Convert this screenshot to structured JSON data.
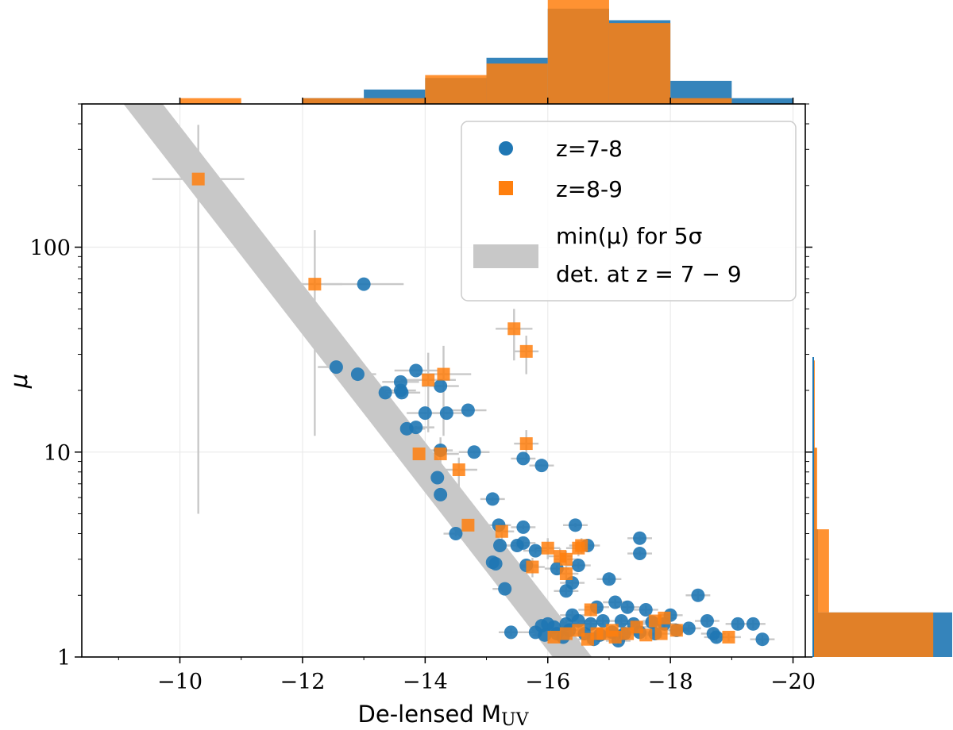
{
  "chart_data": {
    "type": "scatter",
    "title": "",
    "xlabel": "De-lensed M",
    "xlabel_sub": "UV",
    "ylabel": "μ",
    "xlim": [
      -8.4,
      -20.2
    ],
    "ylim": [
      1,
      500
    ],
    "yscale": "log",
    "x_ticks": [
      -10,
      -12,
      -14,
      -16,
      -18,
      -20
    ],
    "x_tick_labels": [
      "−10",
      "−12",
      "−14",
      "−16",
      "−18",
      "−20"
    ],
    "y_ticks": [
      1,
      10,
      100
    ],
    "y_tick_labels": [
      "1",
      "10",
      "100"
    ],
    "grid": true,
    "legend": {
      "placement": "top-right",
      "entries": [
        {
          "label": "z=7-8",
          "marker": "circle"
        },
        {
          "label": "z=8-9",
          "marker": "square"
        },
        {
          "label_line1": "min(μ) for 5σ",
          "label_line2": "det. at z = 7 − 9",
          "marker": "band"
        }
      ]
    },
    "colors": {
      "blue": "#1f77b4",
      "orange": "#ff7f0e",
      "band": "#c8c8c8",
      "errorbar": "#c8c8c8"
    },
    "band": {
      "x": [
        -9.4,
        -16.4
      ],
      "y_lo": [
        500,
        1
      ],
      "y_hi": [
        500,
        1
      ],
      "half_width_x": 0.32
    },
    "series": [
      {
        "name": "z=7-8",
        "points": [
          [
            -13.0,
            66,
            0.65,
            0.28,
            0.5
          ],
          [
            -12.55,
            26,
            0.3,
            0.2,
            0.2
          ],
          [
            -12.9,
            24,
            0.3,
            0.2,
            0.2
          ],
          [
            -13.85,
            25,
            0.35,
            0.2,
            0.2
          ],
          [
            -13.6,
            22,
            0.3,
            0.2,
            0.2
          ],
          [
            -13.62,
            19.5,
            0.3,
            0.2,
            0.2
          ],
          [
            -13.35,
            19.5,
            0.3,
            0.2,
            0.2
          ],
          [
            -13.6,
            20,
            0.25,
            0.2,
            0.2
          ],
          [
            -14.25,
            21,
            0.3,
            0.2,
            0.2
          ],
          [
            -14.0,
            15.5,
            0.3,
            0.2,
            0.2
          ],
          [
            -14.35,
            15.5,
            0.3,
            0.2,
            0.2
          ],
          [
            -14.7,
            16,
            0.3,
            0.2,
            0.2
          ],
          [
            -13.7,
            13,
            0.3,
            0.2,
            0.2
          ],
          [
            -13.85,
            13.2,
            0.3,
            0.2,
            0.2
          ],
          [
            -14.25,
            10.2,
            0.2,
            0.15,
            0.15
          ],
          [
            -14.8,
            10,
            0.25,
            0.15,
            0.15
          ],
          [
            -14.2,
            7.5,
            0.2,
            0.15,
            0.15
          ],
          [
            -14.25,
            6.2,
            0.2,
            0.15,
            0.15
          ],
          [
            -14.5,
            4.0,
            0.2,
            0.12,
            0.12
          ],
          [
            -15.1,
            5.9,
            0.2,
            0.12,
            0.12
          ],
          [
            -15.2,
            4.4,
            0.2,
            0.12,
            0.12
          ],
          [
            -15.22,
            3.5,
            0.2,
            0.12,
            0.12
          ],
          [
            -15.1,
            2.9,
            0.2,
            0.1,
            0.1
          ],
          [
            -15.15,
            2.85,
            0.2,
            0.1,
            0.1
          ],
          [
            -15.3,
            2.15,
            0.2,
            0.1,
            0.1
          ],
          [
            -15.5,
            3.5,
            0.2,
            0.1,
            0.1
          ],
          [
            -15.6,
            4.3,
            0.2,
            0.1,
            0.1
          ],
          [
            -15.6,
            9.3,
            0.2,
            0.12,
            0.12
          ],
          [
            -15.9,
            8.6,
            0.2,
            0.12,
            0.12
          ],
          [
            -15.6,
            3.6,
            0.2,
            0.1,
            0.1
          ],
          [
            -15.65,
            2.8,
            0.2,
            0.1,
            0.1
          ],
          [
            -15.8,
            3.3,
            0.2,
            0.1,
            0.1
          ],
          [
            -16.15,
            2.7,
            0.2,
            0.1,
            0.1
          ],
          [
            -16.45,
            4.4,
            0.2,
            0.1,
            0.1
          ],
          [
            -16.65,
            3.5,
            0.2,
            0.1,
            0.1
          ],
          [
            -16.5,
            2.8,
            0.2,
            0.1,
            0.1
          ],
          [
            -16.4,
            2.3,
            0.2,
            0.1,
            0.1
          ],
          [
            -16.3,
            2.1,
            0.2,
            0.1,
            0.1
          ],
          [
            -17.0,
            2.4,
            0.2,
            0.1,
            0.1
          ],
          [
            -17.5,
            3.8,
            0.2,
            0.1,
            0.1
          ],
          [
            -17.5,
            3.2,
            0.2,
            0.1,
            0.1
          ],
          [
            -18.45,
            2.0,
            0.2,
            0.1,
            0.1
          ],
          [
            -17.1,
            1.85,
            0.2,
            0.08,
            0.08
          ],
          [
            -17.3,
            1.75,
            0.2,
            0.08,
            0.08
          ],
          [
            -16.8,
            1.75,
            0.2,
            0.08,
            0.08
          ],
          [
            -17.6,
            1.7,
            0.2,
            0.08,
            0.08
          ],
          [
            -18.0,
            1.6,
            0.2,
            0.08,
            0.08
          ],
          [
            -16.4,
            1.6,
            0.2,
            0.08,
            0.08
          ],
          [
            -15.9,
            1.42,
            0.2,
            0.07,
            0.07
          ],
          [
            -16.0,
            1.45,
            0.2,
            0.07,
            0.07
          ],
          [
            -16.1,
            1.4,
            0.2,
            0.07,
            0.07
          ],
          [
            -16.3,
            1.45,
            0.2,
            0.07,
            0.07
          ],
          [
            -16.5,
            1.5,
            0.2,
            0.07,
            0.07
          ],
          [
            -16.7,
            1.45,
            0.2,
            0.07,
            0.07
          ],
          [
            -16.9,
            1.5,
            0.2,
            0.07,
            0.07
          ],
          [
            -17.2,
            1.5,
            0.2,
            0.07,
            0.07
          ],
          [
            -17.4,
            1.45,
            0.2,
            0.07,
            0.07
          ],
          [
            -17.7,
            1.48,
            0.2,
            0.07,
            0.07
          ],
          [
            -17.9,
            1.45,
            0.2,
            0.07,
            0.07
          ],
          [
            -18.6,
            1.5,
            0.2,
            0.07,
            0.07
          ],
          [
            -18.7,
            1.3,
            0.2,
            0.07,
            0.07
          ],
          [
            -18.75,
            1.25,
            0.2,
            0.07,
            0.07
          ],
          [
            -19.1,
            1.45,
            0.2,
            0.07,
            0.07
          ],
          [
            -19.35,
            1.45,
            0.2,
            0.07,
            0.07
          ],
          [
            -19.5,
            1.22,
            0.2,
            0.06,
            0.06
          ],
          [
            -15.4,
            1.32,
            0.2,
            0.06,
            0.06
          ],
          [
            -15.8,
            1.32,
            0.2,
            0.06,
            0.06
          ],
          [
            -15.95,
            1.28,
            0.2,
            0.06,
            0.06
          ],
          [
            -16.15,
            1.3,
            0.2,
            0.06,
            0.06
          ],
          [
            -16.35,
            1.35,
            0.2,
            0.06,
            0.06
          ],
          [
            -16.6,
            1.3,
            0.2,
            0.06,
            0.06
          ],
          [
            -16.85,
            1.28,
            0.2,
            0.06,
            0.06
          ],
          [
            -17.05,
            1.32,
            0.2,
            0.06,
            0.06
          ],
          [
            -17.25,
            1.3,
            0.2,
            0.06,
            0.06
          ],
          [
            -17.5,
            1.32,
            0.2,
            0.06,
            0.06
          ],
          [
            -17.75,
            1.3,
            0.2,
            0.06,
            0.06
          ],
          [
            -18.1,
            1.35,
            0.2,
            0.06,
            0.06
          ],
          [
            -18.3,
            1.38,
            0.2,
            0.06,
            0.06
          ],
          [
            -16.75,
            1.22,
            0.2,
            0.06,
            0.06
          ],
          [
            -17.15,
            1.2,
            0.2,
            0.06,
            0.06
          ],
          [
            -16.25,
            1.25,
            0.2,
            0.06,
            0.06
          ]
        ]
      },
      {
        "name": "z=8-9",
        "points": [
          [
            -10.3,
            215,
            0.75,
            210,
            180
          ],
          [
            -12.2,
            66,
            0.45,
            54,
            55
          ],
          [
            -14.05,
            22.5,
            0.45,
            10,
            8
          ],
          [
            -14.3,
            24,
            0.45,
            12,
            9
          ],
          [
            -13.9,
            9.8,
            0.3,
            2.5,
            2
          ],
          [
            -14.25,
            9.8,
            0.3,
            2.5,
            2
          ],
          [
            -14.55,
            8.2,
            0.3,
            1.5,
            1.2
          ],
          [
            -14.7,
            4.4,
            0.25,
            0.8,
            0.7
          ],
          [
            -15.25,
            4.1,
            0.2,
            0.5,
            0.4
          ],
          [
            -15.45,
            40,
            0.3,
            12,
            10
          ],
          [
            -15.65,
            31,
            0.2,
            7,
            6
          ],
          [
            -15.65,
            11,
            0.2,
            2,
            1.8
          ],
          [
            -15.75,
            2.75,
            0.2,
            0.3,
            0.3
          ],
          [
            -16.0,
            3.4,
            0.2,
            0.4,
            0.4
          ],
          [
            -16.2,
            3.1,
            0.2,
            0.3,
            0.3
          ],
          [
            -16.3,
            3.0,
            0.2,
            0.3,
            0.3
          ],
          [
            -16.3,
            2.55,
            0.2,
            0.25,
            0.25
          ],
          [
            -16.5,
            3.4,
            0.2,
            0.3,
            0.3
          ],
          [
            -16.55,
            3.5,
            0.2,
            0.3,
            0.3
          ],
          [
            -16.7,
            1.7,
            0.2,
            0.12,
            0.12
          ],
          [
            -16.3,
            1.3,
            0.2,
            0.08,
            0.08
          ],
          [
            -16.5,
            1.35,
            0.2,
            0.08,
            0.08
          ],
          [
            -16.8,
            1.3,
            0.2,
            0.08,
            0.08
          ],
          [
            -17.05,
            1.35,
            0.2,
            0.08,
            0.08
          ],
          [
            -17.3,
            1.3,
            0.2,
            0.08,
            0.08
          ],
          [
            -17.45,
            1.4,
            0.2,
            0.08,
            0.08
          ],
          [
            -17.75,
            1.5,
            0.2,
            0.08,
            0.08
          ],
          [
            -17.9,
            1.55,
            0.2,
            0.08,
            0.08
          ],
          [
            -18.1,
            1.35,
            0.2,
            0.08,
            0.08
          ],
          [
            -16.1,
            1.25,
            0.2,
            0.06,
            0.06
          ],
          [
            -16.65,
            1.22,
            0.2,
            0.06,
            0.06
          ],
          [
            -17.1,
            1.25,
            0.2,
            0.06,
            0.06
          ],
          [
            -17.6,
            1.28,
            0.2,
            0.06,
            0.06
          ],
          [
            -17.85,
            1.3,
            0.2,
            0.06,
            0.06
          ],
          [
            -18.95,
            1.25,
            0.2,
            0.06,
            0.06
          ],
          [
            -16.9,
            1.3,
            0.2,
            0.06,
            0.06
          ]
        ]
      }
    ],
    "hist_top": {
      "bin_edges": [
        -10,
        -11,
        -12,
        -13,
        -14,
        -15,
        -16,
        -17,
        -18,
        -19,
        -20
      ],
      "blue": [
        0,
        0,
        0.02,
        0.05,
        0.09,
        0.16,
        0.33,
        0.29,
        0.08,
        0.02
      ],
      "orange": [
        0.02,
        0,
        0.02,
        0.02,
        0.1,
        0.14,
        0.36,
        0.28,
        0.02,
        0
      ]
    },
    "hist_right": {
      "bin_edges_mu": [
        1,
        1.65,
        4.2,
        10.5,
        28,
        75,
        200,
        500
      ],
      "blue": [
        0.88,
        0.03,
        0.015,
        0.005,
        0,
        0,
        0
      ],
      "orange": [
        0.76,
        0.1,
        0.025,
        0.01,
        0,
        0,
        0
      ]
    }
  }
}
